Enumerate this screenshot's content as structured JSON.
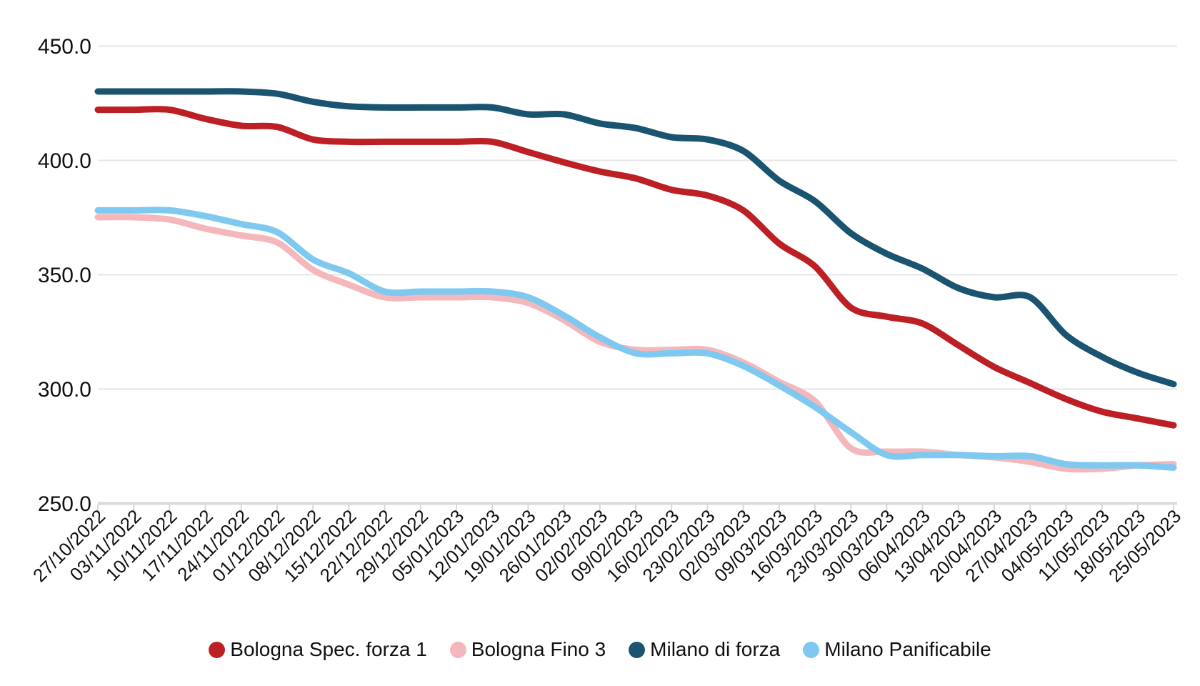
{
  "chart_data": {
    "type": "line",
    "x": [
      "27/10/2022",
      "03/11/2022",
      "10/11/2022",
      "17/11/2022",
      "24/11/2022",
      "01/12/2022",
      "08/12/2022",
      "15/12/2022",
      "22/12/2022",
      "29/12/2022",
      "05/01/2023",
      "12/01/2023",
      "19/01/2023",
      "26/01/2023",
      "02/02/2023",
      "09/02/2023",
      "16/02/2023",
      "23/02/2023",
      "02/03/2023",
      "09/03/2023",
      "16/03/2023",
      "23/03/2023",
      "30/03/2023",
      "06/04/2023",
      "13/04/2023",
      "20/04/2023",
      "27/04/2023",
      "04/05/2023",
      "11/05/2023",
      "18/05/2023",
      "25/05/2023"
    ],
    "series": [
      {
        "name": "Bologna Spec. forza 1",
        "color": "#BC2024",
        "values": [
          422,
          422,
          422,
          418,
          415,
          414.5,
          409,
          408,
          408,
          408,
          408,
          408,
          403.5,
          399,
          395,
          392,
          387,
          384.5,
          378,
          363.5,
          353.5,
          335.5,
          331.5,
          328.5,
          319,
          309.5,
          302.5,
          295.5,
          290,
          287,
          284
        ]
      },
      {
        "name": "Bologna Fino 3",
        "color": "#F4B8BC",
        "values": [
          375,
          375,
          374,
          370,
          367,
          364,
          352,
          345.5,
          340,
          340,
          340,
          340,
          337.5,
          330,
          320.5,
          317,
          317,
          317,
          311.5,
          303,
          294.5,
          274,
          272.5,
          272.5,
          271,
          270,
          268,
          265,
          265,
          266.5,
          267
        ]
      },
      {
        "name": "Milano di forza",
        "color": "#1A5470",
        "values": [
          430,
          430,
          430,
          430,
          430,
          429,
          425.5,
          423.5,
          423,
          423,
          423,
          423,
          420,
          420,
          416,
          414,
          410,
          409,
          404,
          391,
          382,
          368,
          359,
          352.5,
          344,
          340,
          340,
          323.5,
          314,
          307,
          302
        ]
      },
      {
        "name": "Milano Panificabile",
        "color": "#7FC9F0",
        "values": [
          378,
          378,
          378,
          375.5,
          372,
          368.5,
          356.5,
          350.5,
          342.5,
          342.5,
          342.5,
          342.5,
          340,
          332,
          322.5,
          315.5,
          315.5,
          315.5,
          310,
          301.5,
          292,
          281,
          271,
          271,
          271,
          270.5,
          270.5,
          267,
          266.5,
          266.5,
          265.5
        ]
      }
    ],
    "title": "",
    "xlabel": "",
    "ylabel": "",
    "ylim": [
      250,
      450
    ],
    "yticks": [
      250,
      300,
      350,
      400,
      450
    ],
    "ytick_labels": [
      "250.0",
      "300.0",
      "350.0",
      "400.0",
      "450.0"
    ],
    "grid": true,
    "legend_position": "bottom",
    "x_label_rotation_deg": -45
  },
  "style": {
    "background": "#ffffff",
    "grid_color": "#E6E6E6",
    "axis_color": "#DADADA",
    "tick_color": "#D9D9D9",
    "text_color": "#111111",
    "line_width": 9
  }
}
